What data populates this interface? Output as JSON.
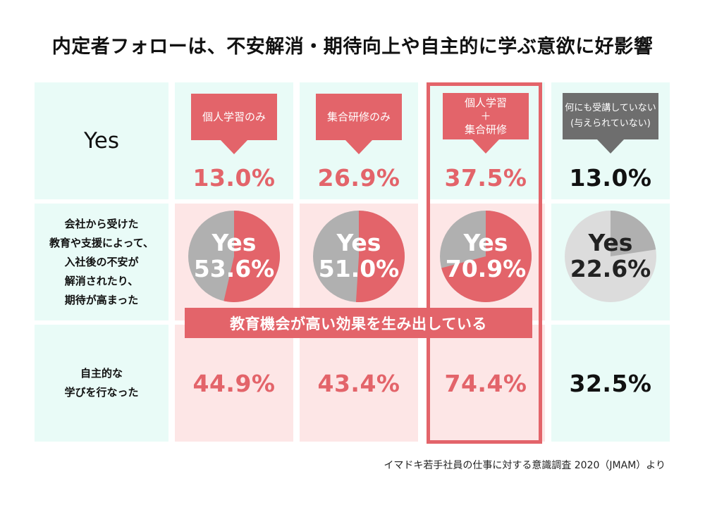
{
  "title": "内定者フォローは、不安解消・期待向上や自主的に学ぶ意欲に好影響",
  "rows": {
    "yes": "Yes",
    "affected_lines": [
      "会社から受けた",
      "教育や支援によって、",
      "入社後の不安が",
      "解消されたり、",
      "期待が高まった"
    ],
    "learning_lines": [
      "自主的な",
      "学びを行なった"
    ]
  },
  "columns": [
    {
      "badge_lines": [
        "個人学習のみ"
      ],
      "style": "red"
    },
    {
      "badge_lines": [
        "集合研修のみ"
      ],
      "style": "red"
    },
    {
      "badge_lines": [
        "個人学習",
        "＋",
        "集合研修"
      ],
      "style": "red"
    },
    {
      "badge_lines": [
        "何にも受講していない",
        "(与えられていない)"
      ],
      "style": "gray"
    }
  ],
  "banner": "教育機会が高い効果を生み出している",
  "source": "イマドキ若手社員の仕事に対する意識調査 2020（JMAM）より",
  "colors": {
    "accent": "#e3646a",
    "pie_gray": "#b0b0b0",
    "pie_light": "#dcdcdc",
    "dark": "#111111"
  },
  "chart_data": {
    "type": "table",
    "title": "内定者フォローは、不安解消・期待向上や自主的に学ぶ意欲に好影響",
    "categories": [
      "個人学習のみ",
      "集合研修のみ",
      "個人学習＋集合研修",
      "何にも受講していない(与えられていない)"
    ],
    "series": [
      {
        "name": "Yes",
        "values": [
          13.0,
          26.9,
          37.5,
          13.0
        ],
        "labels": [
          "13.0%",
          "26.9%",
          "37.5%",
          "13.0%"
        ]
      },
      {
        "name": "会社から受けた教育や支援によって、入社後の不安が解消されたり、期待が高まった",
        "type": "pie",
        "values": [
          53.6,
          51.0,
          70.9,
          22.6
        ],
        "labels": [
          "53.6%",
          "51.0%",
          "70.9%",
          "22.6%"
        ],
        "pie_label": "Yes"
      },
      {
        "name": "自主的な学びを行なった",
        "values": [
          44.9,
          43.4,
          74.4,
          32.5
        ],
        "labels": [
          "44.9%",
          "43.4%",
          "74.4%",
          "32.5%"
        ]
      }
    ],
    "highlight_column": 2
  }
}
